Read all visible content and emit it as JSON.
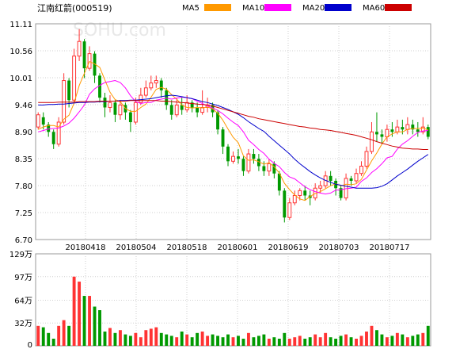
{
  "title": "江南红箭(000519)",
  "watermark": "SOHU.com",
  "legend": [
    {
      "name": "MA5",
      "color": "#ff9900"
    },
    {
      "name": "MA10",
      "color": "#ff00ff"
    },
    {
      "name": "MA20",
      "color": "#0000cc"
    },
    {
      "name": "MA60",
      "color": "#cc0000"
    }
  ],
  "colors": {
    "up": "#ff3333",
    "down": "#009900",
    "grid": "#cfcfcf"
  },
  "chart_data": [
    {
      "type": "candlestick",
      "y_ticks": [
        "11.11",
        "10.56",
        "10.01",
        "9.46",
        "8.90",
        "8.35",
        "7.80",
        "7.25",
        "6.70"
      ],
      "x_ticks": [
        "20180418",
        "20180504",
        "20180518",
        "20180601",
        "20180619",
        "20180703",
        "20180717"
      ],
      "ylim": [
        6.7,
        11.11
      ],
      "candles": [
        [
          9.0,
          9.25,
          9.3,
          8.95
        ],
        [
          9.2,
          9.05,
          9.3,
          8.95
        ],
        [
          9.05,
          8.9,
          9.1,
          8.8
        ],
        [
          8.9,
          8.65,
          8.95,
          8.55
        ],
        [
          8.65,
          9.1,
          9.2,
          8.6
        ],
        [
          9.1,
          9.95,
          10.1,
          9.05
        ],
        [
          9.95,
          9.55,
          10.0,
          9.4
        ],
        [
          9.55,
          10.45,
          10.6,
          9.5
        ],
        [
          10.45,
          10.75,
          11.0,
          10.35
        ],
        [
          10.75,
          10.2,
          10.8,
          10.0
        ],
        [
          10.2,
          10.5,
          10.65,
          10.15
        ],
        [
          10.5,
          10.05,
          10.55,
          9.9
        ],
        [
          10.05,
          9.6,
          10.1,
          9.5
        ],
        [
          9.6,
          9.4,
          9.7,
          9.2
        ],
        [
          9.4,
          9.5,
          9.65,
          9.3
        ],
        [
          9.5,
          9.25,
          9.55,
          9.1
        ],
        [
          9.25,
          9.45,
          9.55,
          9.15
        ],
        [
          9.45,
          9.3,
          9.5,
          9.15
        ],
        [
          9.3,
          9.1,
          9.35,
          8.9
        ],
        [
          9.1,
          9.5,
          9.6,
          9.05
        ],
        [
          9.5,
          9.65,
          9.8,
          9.45
        ],
        [
          9.65,
          9.8,
          9.95,
          9.6
        ],
        [
          9.8,
          9.9,
          10.05,
          9.75
        ],
        [
          9.9,
          9.95,
          10.05,
          9.8
        ],
        [
          9.95,
          9.75,
          10.0,
          9.6
        ],
        [
          9.75,
          9.45,
          9.8,
          9.35
        ],
        [
          9.45,
          9.25,
          9.55,
          9.15
        ],
        [
          9.25,
          9.45,
          9.6,
          9.2
        ],
        [
          9.45,
          9.35,
          9.6,
          9.25
        ],
        [
          9.35,
          9.5,
          9.65,
          9.3
        ],
        [
          9.5,
          9.4,
          9.55,
          9.3
        ],
        [
          9.4,
          9.3,
          9.5,
          9.2
        ],
        [
          9.3,
          9.4,
          9.75,
          9.25
        ],
        [
          9.4,
          9.45,
          9.6,
          9.3
        ],
        [
          9.45,
          9.3,
          9.5,
          9.2
        ],
        [
          9.3,
          8.95,
          9.35,
          8.85
        ],
        [
          8.95,
          8.6,
          9.0,
          8.45
        ],
        [
          8.6,
          8.3,
          8.65,
          8.2
        ],
        [
          8.3,
          8.4,
          8.5,
          8.25
        ],
        [
          8.4,
          8.35,
          8.55,
          8.25
        ],
        [
          8.35,
          8.1,
          8.4,
          8.0
        ],
        [
          8.1,
          8.45,
          8.55,
          8.05
        ],
        [
          8.45,
          8.35,
          8.55,
          8.25
        ],
        [
          8.35,
          8.2,
          8.45,
          8.1
        ],
        [
          8.2,
          8.1,
          8.3,
          8.0
        ],
        [
          8.1,
          8.25,
          8.35,
          8.0
        ],
        [
          8.25,
          8.05,
          8.3,
          7.95
        ],
        [
          8.05,
          7.7,
          8.1,
          7.6
        ],
        [
          7.7,
          7.15,
          7.75,
          7.05
        ],
        [
          7.15,
          7.45,
          7.55,
          7.1
        ],
        [
          7.45,
          7.6,
          7.7,
          7.4
        ],
        [
          7.6,
          7.7,
          7.75,
          7.5
        ],
        [
          7.7,
          7.6,
          7.8,
          7.5
        ],
        [
          7.6,
          7.55,
          7.7,
          7.4
        ],
        [
          7.55,
          7.75,
          7.85,
          7.5
        ],
        [
          7.75,
          7.8,
          7.9,
          7.65
        ],
        [
          7.8,
          8.0,
          8.1,
          7.75
        ],
        [
          8.0,
          7.9,
          8.1,
          7.8
        ],
        [
          7.9,
          7.75,
          7.95,
          7.6
        ],
        [
          7.75,
          7.55,
          7.8,
          7.5
        ],
        [
          7.55,
          7.95,
          8.05,
          7.5
        ],
        [
          7.95,
          7.9,
          8.0,
          7.8
        ],
        [
          7.9,
          8.05,
          8.15,
          7.85
        ],
        [
          8.05,
          8.2,
          8.3,
          8.0
        ],
        [
          8.2,
          8.5,
          8.6,
          8.15
        ],
        [
          8.5,
          8.9,
          9.1,
          8.45
        ],
        [
          8.9,
          8.85,
          9.3,
          8.7
        ],
        [
          8.85,
          8.8,
          8.95,
          8.65
        ],
        [
          8.8,
          8.95,
          9.05,
          8.7
        ],
        [
          8.95,
          8.9,
          9.1,
          8.8
        ],
        [
          8.9,
          9.0,
          9.15,
          8.85
        ],
        [
          9.0,
          8.95,
          9.15,
          8.85
        ],
        [
          8.95,
          9.05,
          9.2,
          8.85
        ],
        [
          9.05,
          8.95,
          9.15,
          8.85
        ],
        [
          8.95,
          8.9,
          9.1,
          8.8
        ],
        [
          8.9,
          9.0,
          9.2,
          8.85
        ],
        [
          9.0,
          8.8,
          9.05,
          8.75
        ]
      ],
      "ma5": [
        8.95,
        9.0,
        9.03,
        9.03,
        9.0,
        9.16,
        9.24,
        9.49,
        9.85,
        10.1,
        10.34,
        10.29,
        10.22,
        9.96,
        9.71,
        9.56,
        9.52,
        9.38,
        9.32,
        9.32,
        9.4,
        9.47,
        9.61,
        9.77,
        9.81,
        9.77,
        9.66,
        9.57,
        9.45,
        9.4,
        9.39,
        9.4,
        9.39,
        9.41,
        9.37,
        9.28,
        9.14,
        8.96,
        8.79,
        8.68,
        8.41,
        8.32,
        8.33,
        8.29,
        8.24,
        8.27,
        8.19,
        8.06,
        7.85,
        7.72,
        7.61,
        7.53,
        7.5,
        7.58,
        7.64,
        7.68,
        7.74,
        7.8,
        7.84,
        7.8,
        7.83,
        7.82,
        7.84,
        7.93,
        8.12,
        8.31,
        8.47,
        8.65,
        8.8,
        8.86,
        8.9,
        8.9,
        8.95,
        8.97,
        8.97,
        8.98,
        8.94
      ],
      "ma10": [
        8.9,
        8.93,
        8.96,
        8.97,
        8.98,
        9.02,
        9.08,
        9.18,
        9.31,
        9.45,
        9.67,
        9.78,
        9.85,
        9.91,
        9.93,
        9.95,
        9.91,
        9.8,
        9.64,
        9.52,
        9.48,
        9.5,
        9.5,
        9.55,
        9.57,
        9.59,
        9.57,
        9.59,
        9.61,
        9.6,
        9.58,
        9.53,
        9.48,
        9.43,
        9.39,
        9.34,
        9.27,
        9.18,
        9.1,
        9.03,
        8.9,
        8.73,
        8.64,
        8.54,
        8.46,
        8.34,
        8.26,
        8.19,
        8.07,
        7.98,
        7.94,
        7.86,
        7.78,
        7.72,
        7.68,
        7.65,
        7.63,
        7.65,
        7.71,
        7.72,
        7.74,
        7.75,
        7.77,
        7.89,
        7.96,
        8.07,
        8.15,
        8.25,
        8.37,
        8.4,
        8.55,
        8.65,
        8.72,
        8.81,
        8.89,
        8.92,
        8.93
      ],
      "ma20": [
        9.45,
        9.45,
        9.46,
        9.46,
        9.47,
        9.47,
        9.48,
        9.49,
        9.5,
        9.5,
        9.51,
        9.51,
        9.52,
        9.52,
        9.53,
        9.53,
        9.54,
        9.54,
        9.55,
        9.55,
        9.56,
        9.57,
        9.58,
        9.6,
        9.62,
        9.64,
        9.65,
        9.64,
        9.62,
        9.6,
        9.58,
        9.55,
        9.52,
        9.5,
        9.47,
        9.44,
        9.4,
        9.36,
        9.31,
        9.26,
        9.19,
        9.11,
        9.04,
        8.97,
        8.91,
        8.81,
        8.72,
        8.63,
        8.54,
        8.45,
        8.34,
        8.25,
        8.17,
        8.09,
        8.02,
        7.96,
        7.91,
        7.87,
        7.83,
        7.81,
        7.79,
        7.77,
        7.75,
        7.75,
        7.75,
        7.75,
        7.76,
        7.79,
        7.84,
        7.92,
        8.0,
        8.07,
        8.14,
        8.22,
        8.3,
        8.37,
        8.44
      ],
      "ma60": [
        9.5,
        9.5,
        9.5,
        9.5,
        9.51,
        9.51,
        9.51,
        9.51,
        9.52,
        9.52,
        9.52,
        9.52,
        9.53,
        9.53,
        9.53,
        9.53,
        9.53,
        9.53,
        9.54,
        9.54,
        9.54,
        9.54,
        9.54,
        9.54,
        9.53,
        9.53,
        9.52,
        9.51,
        9.5,
        9.49,
        9.48,
        9.47,
        9.46,
        9.45,
        9.43,
        9.4,
        9.37,
        9.34,
        9.31,
        9.28,
        9.25,
        9.22,
        9.2,
        9.17,
        9.15,
        9.13,
        9.11,
        9.09,
        9.07,
        9.05,
        9.03,
        9.01,
        9.0,
        8.98,
        8.97,
        8.95,
        8.94,
        8.93,
        8.91,
        8.89,
        8.87,
        8.85,
        8.83,
        8.8,
        8.77,
        8.74,
        8.7,
        8.67,
        8.64,
        8.61,
        8.59,
        8.57,
        8.56,
        8.55,
        8.55,
        8.54,
        8.54
      ]
    },
    {
      "type": "bar",
      "y_ticks": [
        "129万",
        "97万",
        "64万",
        "32万",
        "0"
      ],
      "ylim": [
        0,
        129
      ],
      "values": [
        28,
        26,
        18,
        10,
        28,
        36,
        28,
        34,
        45,
        30,
        36,
        34,
        28,
        20,
        25,
        18,
        22,
        16,
        14,
        18,
        12,
        22,
        24,
        26,
        18,
        16,
        14,
        12,
        20,
        16,
        12,
        18,
        20,
        14,
        16,
        14,
        12,
        16,
        12,
        14,
        10,
        18,
        12,
        14,
        16,
        10,
        12,
        10,
        18,
        10,
        12,
        14,
        10,
        12,
        16,
        12,
        18,
        12,
        10,
        14,
        16,
        12,
        10,
        14,
        20,
        28,
        22,
        16,
        12,
        14,
        18,
        16,
        12,
        14,
        16,
        18,
        28
      ],
      "spike_values": [
        97,
        90,
        70,
        70,
        55,
        50
      ]
    }
  ]
}
